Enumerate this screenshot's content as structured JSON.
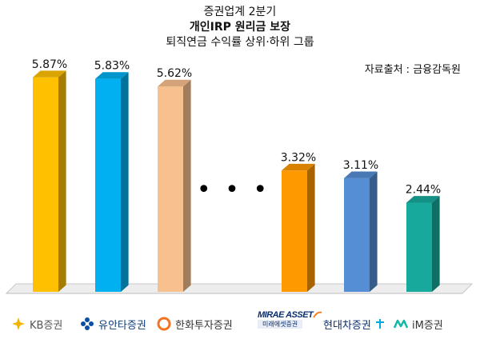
{
  "header": {
    "line1": "증권업계 2분기",
    "line2": "개인IRP 원리금 보장",
    "line3": "퇴직연금 수익률 상위·하위 그룹",
    "source": "자료출처 : 금융감독원"
  },
  "chart_data": {
    "type": "bar",
    "categories": [
      "KB증권",
      "유안타증권",
      "한화투자증권",
      "미래에셋증권",
      "현대차증권",
      "iM증권"
    ],
    "values": [
      5.87,
      5.83,
      5.62,
      3.32,
      3.11,
      2.44
    ],
    "value_labels": [
      "5.87%",
      "5.83%",
      "5.62%",
      "3.32%",
      "3.11%",
      "2.44%"
    ],
    "colors": [
      "#FFC000",
      "#00B0F0",
      "#F9C08F",
      "#FF9900",
      "#558ED5",
      "#17A99C"
    ],
    "ylim": [
      0,
      6.5
    ],
    "grid": false,
    "legend": "none",
    "gap_marker": "• • •"
  },
  "logos": {
    "kb": {
      "text": "KB증권",
      "icon": "kb-star-icon"
    },
    "yuanta": {
      "text": "유안타증권",
      "icon": "yuanta-flower-icon"
    },
    "hanwha": {
      "text": "한화투자증권",
      "icon": "hanwha-circle-icon"
    },
    "mirae": {
      "top": "MIRAE ASSET",
      "bottom": "미래에셋증권",
      "icon": "mirae-swoosh-icon"
    },
    "hyundai": {
      "text": "현대차증권",
      "icon": "hyundai-plus-icon"
    },
    "im": {
      "text": "iM증권",
      "icon": "im-wave-icon"
    }
  }
}
